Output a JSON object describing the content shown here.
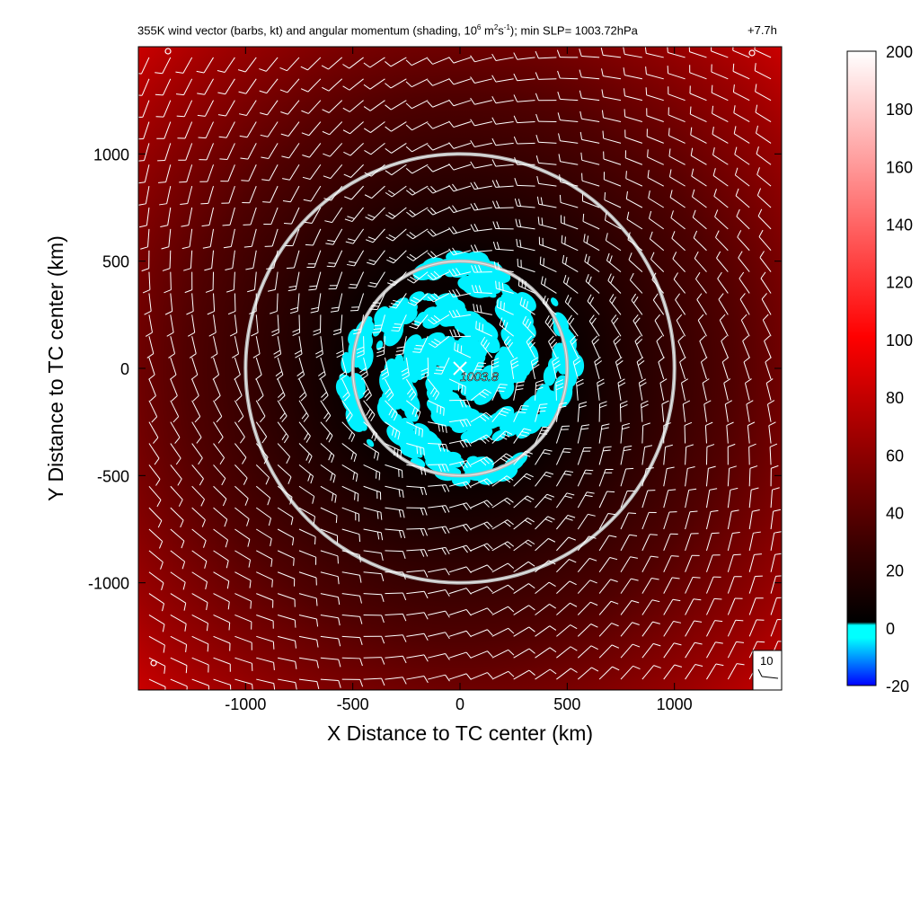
{
  "title": {
    "prefix": "355K wind vector (barbs, kt) and angular momentum (shading, 10",
    "exp1": "6",
    "mid1": " m",
    "exp2": "2",
    "mid2": "s",
    "exp3": "-1",
    "suffix": "); min SLP= 1003.72hPa"
  },
  "timestamp": "+7.7h",
  "chart_data": {
    "type": "heatmap",
    "xlabel": "X Distance to TC center (km)",
    "ylabel": "Y Distance to TC center (km)",
    "xlim": [
      -1500,
      1500
    ],
    "ylim": [
      -1500,
      1500
    ],
    "x_ticks": [
      -1000,
      -500,
      0,
      500,
      1000
    ],
    "y_ticks": [
      -1000,
      -500,
      0,
      500,
      1000
    ],
    "x_tick_labels": [
      "-1000",
      "-500",
      "0",
      "500",
      "1000"
    ],
    "y_tick_labels": [
      "-1000",
      "-500",
      "0",
      "500",
      "1000"
    ],
    "colorbar": {
      "min": -20,
      "max": 200,
      "ticks": [
        -20,
        0,
        20,
        40,
        60,
        80,
        100,
        120,
        140,
        160,
        180,
        200
      ],
      "tick_labels": [
        "-20",
        "0",
        "20",
        "40",
        "60",
        "80",
        "100",
        "120",
        "140",
        "160",
        "180",
        "200"
      ],
      "colors": [
        "#0000ff",
        "#00ffff",
        "#000000",
        "#ff0000",
        "#ffffff"
      ]
    },
    "range_rings_km": [
      500,
      1000
    ],
    "center_label": "1003.8",
    "reference_barb_label": "10",
    "shading_description": "angular momentum increasing radially outward; cyan negative patches in spiral bands within ~500 km"
  }
}
